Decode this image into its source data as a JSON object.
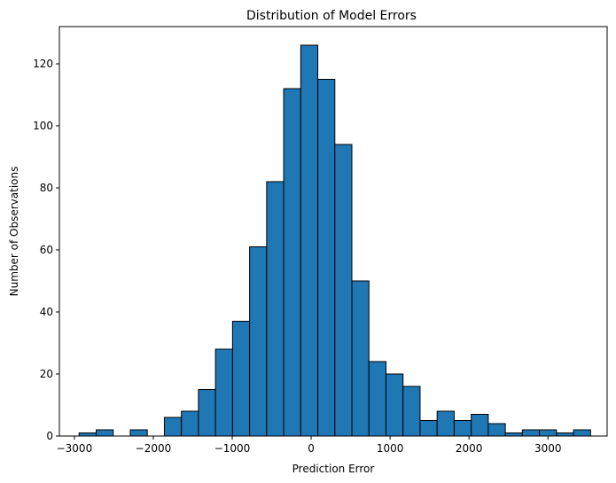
{
  "chart_data": {
    "type": "bar",
    "title": "Distribution of Model Errors",
    "xlabel": "Prediction Error",
    "ylabel": "Number of Observations",
    "xlim": [
      -3190,
      3750
    ],
    "ylim": [
      0,
      132
    ],
    "bin_width": 216,
    "bins": [
      {
        "x0": -2940,
        "x1": -2724,
        "count": 1
      },
      {
        "x0": -2724,
        "x1": -2508,
        "count": 2
      },
      {
        "x0": -2508,
        "x1": -2292,
        "count": 0
      },
      {
        "x0": -2292,
        "x1": -2076,
        "count": 2
      },
      {
        "x0": -2076,
        "x1": -1860,
        "count": 0
      },
      {
        "x0": -1860,
        "x1": -1644,
        "count": 6
      },
      {
        "x0": -1644,
        "x1": -1428,
        "count": 8
      },
      {
        "x0": -1428,
        "x1": -1212,
        "count": 15
      },
      {
        "x0": -1212,
        "x1": -996,
        "count": 28
      },
      {
        "x0": -996,
        "x1": -780,
        "count": 37
      },
      {
        "x0": -780,
        "x1": -564,
        "count": 61
      },
      {
        "x0": -564,
        "x1": -348,
        "count": 82
      },
      {
        "x0": -348,
        "x1": -132,
        "count": 112
      },
      {
        "x0": -132,
        "x1": 84,
        "count": 126
      },
      {
        "x0": 84,
        "x1": 300,
        "count": 115
      },
      {
        "x0": 300,
        "x1": 516,
        "count": 94
      },
      {
        "x0": 516,
        "x1": 732,
        "count": 50
      },
      {
        "x0": 732,
        "x1": 948,
        "count": 24
      },
      {
        "x0": 948,
        "x1": 1164,
        "count": 20
      },
      {
        "x0": 1164,
        "x1": 1380,
        "count": 16
      },
      {
        "x0": 1380,
        "x1": 1596,
        "count": 5
      },
      {
        "x0": 1596,
        "x1": 1812,
        "count": 8
      },
      {
        "x0": 1812,
        "x1": 2028,
        "count": 5
      },
      {
        "x0": 2028,
        "x1": 2244,
        "count": 7
      },
      {
        "x0": 2244,
        "x1": 2460,
        "count": 4
      },
      {
        "x0": 2460,
        "x1": 2676,
        "count": 1
      },
      {
        "x0": 2676,
        "x1": 2892,
        "count": 2
      },
      {
        "x0": 2892,
        "x1": 3108,
        "count": 2
      },
      {
        "x0": 3108,
        "x1": 3324,
        "count": 1
      },
      {
        "x0": 3324,
        "x1": 3540,
        "count": 2
      }
    ],
    "xticks": [
      -3000,
      -2000,
      -1000,
      0,
      1000,
      2000,
      3000
    ],
    "xtick_labels": [
      "−3000",
      "−2000",
      "−1000",
      "0",
      "1000",
      "2000",
      "3000"
    ],
    "yticks": [
      0,
      20,
      40,
      60,
      80,
      100,
      120
    ],
    "ytick_labels": [
      "0",
      "20",
      "40",
      "60",
      "80",
      "100",
      "120"
    ],
    "grid": false,
    "colors": {
      "bar_fill": "#1f77b4",
      "bar_edge": "#000000",
      "axis": "#000000"
    }
  }
}
